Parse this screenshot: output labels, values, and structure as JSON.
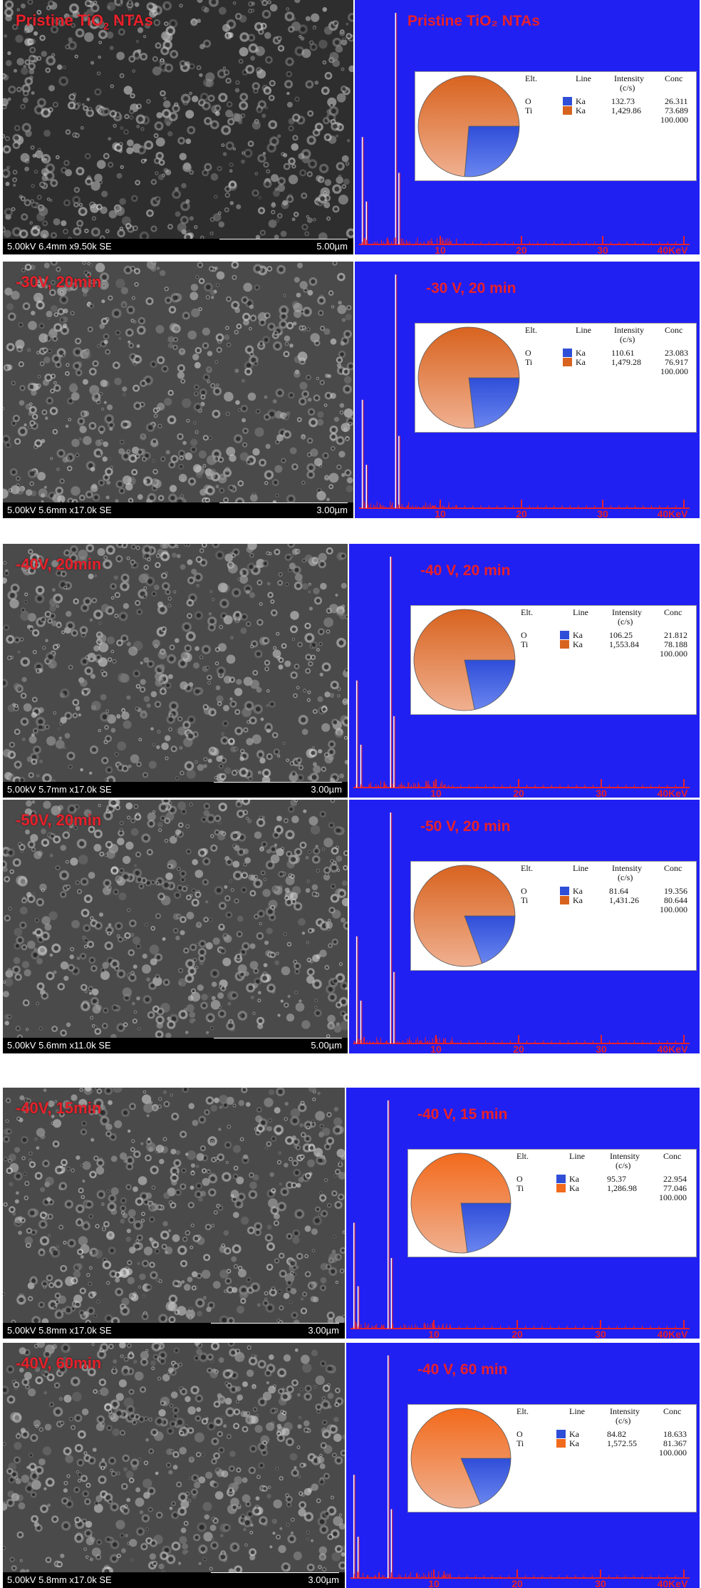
{
  "chart_data": [
    {
      "type": "pie",
      "sample": "Pristine TiO2 NTAs",
      "title": "Pristine TiO₂ NTAs",
      "sem_label_main": "Pristine TiO",
      "sem_label_sub": "2",
      "sem_label_tail": " NTAs",
      "sem_meta": "5.00kV 6.4mm x9.50k SE",
      "sem_scale": "5.00µm",
      "energy_axis_ticks": [
        "10",
        "20",
        "30",
        "40KeV"
      ],
      "table": {
        "headers": [
          "Elt.",
          "Line",
          "Intensity",
          "(c/s)",
          "Conc"
        ],
        "rows": [
          {
            "element": "O",
            "line": "Ka",
            "intensity": "132.73",
            "conc": "26.311",
            "value": 26.311,
            "color": "#2f4ed8"
          },
          {
            "element": "Ti",
            "line": "Ka",
            "intensity": "1,429.86",
            "conc": "73.689",
            "value": 73.689,
            "color": "#d8631f"
          }
        ],
        "total": "100.000"
      }
    },
    {
      "type": "pie",
      "sample": "-30 V, 20 min",
      "title": "-30 V, 20 min",
      "sem_label_main": "-30V, 20min",
      "sem_label_sub": "",
      "sem_label_tail": "",
      "sem_meta": "5.00kV 5.6mm x17.0k SE",
      "sem_scale": "3.00µm",
      "energy_axis_ticks": [
        "10",
        "20",
        "30",
        "40KeV"
      ],
      "table": {
        "headers": [
          "Elt.",
          "Line",
          "Intensity",
          "(c/s)",
          "Conc"
        ],
        "rows": [
          {
            "element": "O",
            "line": "Ka",
            "intensity": "110.61",
            "conc": "23.083",
            "value": 23.083,
            "color": "#2f4ed8"
          },
          {
            "element": "Ti",
            "line": "Ka",
            "intensity": "1,479.28",
            "conc": "76.917",
            "value": 76.917,
            "color": "#d8631f"
          }
        ],
        "total": "100.000"
      }
    },
    {
      "type": "pie",
      "sample": "-40 V, 20 min",
      "title": "-40 V, 20 min",
      "sem_label_main": "-40V, 20min",
      "sem_label_sub": "",
      "sem_label_tail": "",
      "sem_meta": "5.00kV 5.7mm x17.0k SE",
      "sem_scale": "3.00µm",
      "energy_axis_ticks": [
        "10",
        "20",
        "30",
        "40KeV"
      ],
      "table": {
        "headers": [
          "Elt.",
          "Line",
          "Intensity",
          "(c/s)",
          "Conc"
        ],
        "rows": [
          {
            "element": "O",
            "line": "Ka",
            "intensity": "106.25",
            "conc": "21.812",
            "value": 21.812,
            "color": "#2f4ed8"
          },
          {
            "element": "Ti",
            "line": "Ka",
            "intensity": "1,553.84",
            "conc": "78.188",
            "value": 78.188,
            "color": "#d8631f"
          }
        ],
        "total": "100.000"
      }
    },
    {
      "type": "pie",
      "sample": "-50 V, 20 min",
      "title": "-50 V, 20 min",
      "sem_label_main": "-50V, 20min",
      "sem_label_sub": "",
      "sem_label_tail": "",
      "sem_meta": "5.00kV 5.6mm x11.0k SE",
      "sem_scale": "5.00µm",
      "energy_axis_ticks": [
        "10",
        "20",
        "30",
        "40KeV"
      ],
      "table": {
        "headers": [
          "Elt.",
          "Line",
          "Intensity",
          "(c/s)",
          "Conc"
        ],
        "rows": [
          {
            "element": "O",
            "line": "Ka",
            "intensity": "81.64",
            "conc": "19.356",
            "value": 19.356,
            "color": "#2f4ed8"
          },
          {
            "element": "Ti",
            "line": "Ka",
            "intensity": "1,431.26",
            "conc": "80.644",
            "value": 80.644,
            "color": "#d8631f"
          }
        ],
        "total": "100.000"
      }
    },
    {
      "type": "pie",
      "sample": "-40 V, 15 min",
      "title": "-40 V, 15 min",
      "sem_label_main": "-40V, 15min",
      "sem_label_sub": "",
      "sem_label_tail": "",
      "sem_meta": "5.00kV 5.8mm x17.0k SE",
      "sem_scale": "3.00µm",
      "energy_axis_ticks": [
        "10",
        "20",
        "30",
        "40KeV"
      ],
      "table": {
        "headers": [
          "Elt.",
          "Line",
          "Intensity",
          "(c/s)",
          "Conc"
        ],
        "rows": [
          {
            "element": "O",
            "line": "Ka",
            "intensity": "95.37",
            "conc": "22.954",
            "value": 22.954,
            "color": "#2f4ed8"
          },
          {
            "element": "Ti",
            "line": "Ka",
            "intensity": "1,286.98",
            "conc": "77.046",
            "value": 77.046,
            "color": "#f26a1c"
          }
        ],
        "total": "100.000"
      }
    },
    {
      "type": "pie",
      "sample": "-40 V, 60 min",
      "title": "-40 V, 60 min",
      "sem_label_main": "-40V, 60min",
      "sem_label_sub": "",
      "sem_label_tail": "",
      "sem_meta": "5.00kV 5.8mm x17.0k SE",
      "sem_scale": "3.00µm",
      "energy_axis_ticks": [
        "10",
        "20",
        "30",
        "40KeV"
      ],
      "table": {
        "headers": [
          "Elt.",
          "Line",
          "Intensity",
          "(c/s)",
          "Conc"
        ],
        "rows": [
          {
            "element": "O",
            "line": "Ka",
            "intensity": "84.82",
            "conc": "18.633",
            "value": 18.633,
            "color": "#2f4ed8"
          },
          {
            "element": "Ti",
            "line": "Ka",
            "intensity": "1,572.55",
            "conc": "81.367",
            "value": 81.367,
            "color": "#f26a1c"
          }
        ],
        "total": "100.000"
      }
    }
  ],
  "colors": {
    "eds_background": "#2020f2",
    "label_red": "#e8202a",
    "sem_gray": "#3a3a3a"
  }
}
